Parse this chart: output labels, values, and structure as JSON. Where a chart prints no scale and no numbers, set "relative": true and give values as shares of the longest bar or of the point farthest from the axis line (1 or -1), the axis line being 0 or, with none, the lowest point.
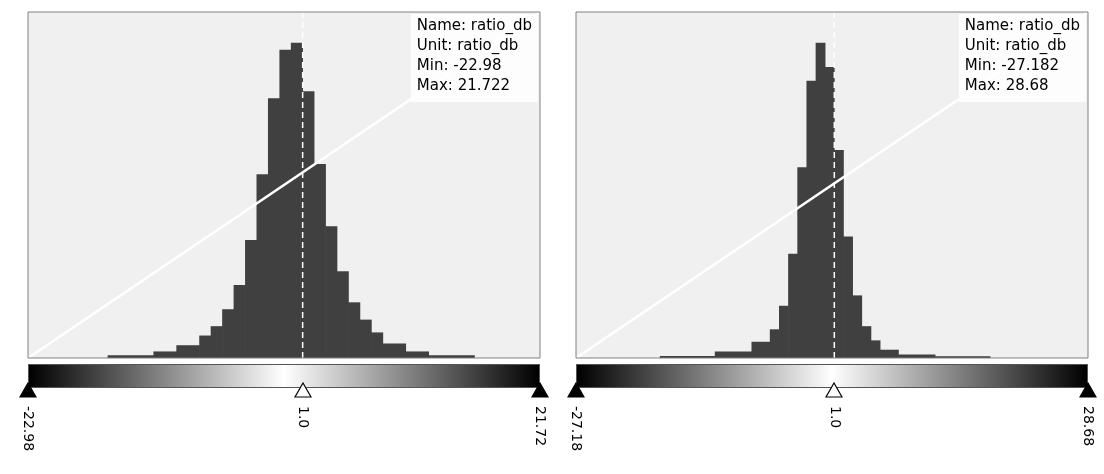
{
  "chart_data": [
    {
      "type": "histogram",
      "relative": true,
      "bins": [
        -16,
        -12,
        -10,
        -8,
        -7,
        -6,
        -5,
        -4,
        -3,
        -2,
        -1,
        0,
        1,
        2,
        3,
        4,
        5,
        6,
        7,
        8,
        10,
        12,
        16
      ],
      "xlim": [
        -22.98,
        21.722
      ],
      "xticks": [
        -22.98,
        {
          "value": 1,
          "label": "1.0"
        },
        21.72
      ],
      "ref_lines": [
        {
          "axis": "x",
          "value": 1,
          "color": "#ffffff",
          "line_style": "dashed"
        }
      ],
      "annotations": [
        "Name: ratio_db",
        "Unit: ratio_db",
        "Min: -22.98",
        "Max: 21.722"
      ],
      "series": [
        {
          "color": "#404040",
          "values": [
            0.007,
            0.018,
            0.036,
            0.064,
            0.091,
            0.14,
            0.21,
            0.34,
            0.53,
            0.75,
            0.89,
            0.91,
            0.77,
            0.56,
            0.38,
            0.25,
            0.16,
            0.11,
            0.073,
            0.041,
            0.018,
            0.007
          ]
        },
        {
          "type": "line",
          "color": "#ffffff",
          "x": [
            -22.98,
            21.722
          ],
          "values": [
            0,
            1
          ]
        }
      ]
    },
    {
      "type": "histogram",
      "relative": true,
      "bins": [
        -18,
        -12,
        -8,
        -6,
        -5,
        -4,
        -3,
        -2,
        -1,
        0,
        1,
        2,
        3,
        4,
        5,
        6,
        8,
        12,
        18
      ],
      "xlim": [
        -27.182,
        28.68
      ],
      "xticks": [
        -27.18,
        {
          "value": 1,
          "label": "1.0"
        },
        28.68
      ],
      "ref_lines": [
        {
          "axis": "x",
          "value": 1,
          "color": "#ffffff",
          "line_style": "dashed"
        }
      ],
      "annotations": [
        "Name: ratio_db",
        "Unit: ratio_db",
        "Min: -27.182",
        "Max: 28.68"
      ],
      "series": [
        {
          "color": "#404040",
          "values": [
            0.005,
            0.018,
            0.046,
            0.082,
            0.15,
            0.3,
            0.55,
            0.8,
            0.91,
            0.84,
            0.6,
            0.35,
            0.18,
            0.091,
            0.05,
            0.023,
            0.009,
            0.004
          ]
        },
        {
          "type": "line",
          "color": "#ffffff",
          "x": [
            -27.182,
            28.68
          ],
          "values": [
            0,
            1
          ]
        }
      ]
    }
  ]
}
